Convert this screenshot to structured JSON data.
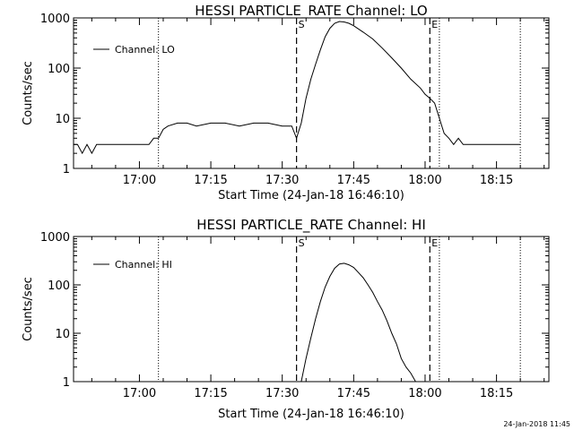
{
  "figure": {
    "timestamp": "24-Jan-2018 11:45"
  },
  "chart_data": [
    {
      "type": "line",
      "title": "HESSI PARTICLE_RATE Channel: LO",
      "xlabel": "Start Time (24-Jan-18 16:46:10)",
      "ylabel": "Counts/sec",
      "x_ticks": [
        "17:00",
        "17:15",
        "17:30",
        "17:45",
        "18:00",
        "18:15"
      ],
      "y_ticks": [
        "1",
        "10",
        "100",
        "1000"
      ],
      "ylim": [
        1,
        1000
      ],
      "y_scale": "log",
      "xlim": [
        "16:46:10",
        "18:26"
      ],
      "grid": false,
      "legend": {
        "position": "top-left",
        "entries": [
          "Channel: LO"
        ]
      },
      "markers": [
        {
          "label": "S",
          "time": "17:33",
          "style": "dashed"
        },
        {
          "label": "E",
          "time": "18:01",
          "style": "dashed"
        }
      ],
      "dotted_lines": [
        "17:04",
        "18:03",
        "18:20"
      ],
      "series": [
        {
          "name": "Channel: LO",
          "x": [
            "16:46:10",
            "16:47",
            "16:48",
            "16:49",
            "16:50",
            "16:51",
            "16:52",
            "16:53",
            "16:55",
            "16:56",
            "16:57",
            "16:58",
            "17:00",
            "17:02",
            "17:03",
            "17:04",
            "17:05",
            "17:06",
            "17:08",
            "17:10",
            "17:12",
            "17:15",
            "17:18",
            "17:21",
            "17:24",
            "17:27",
            "17:30",
            "17:32",
            "17:33",
            "17:34",
            "17:35",
            "17:36",
            "17:37",
            "17:38",
            "17:39",
            "17:40",
            "17:41",
            "17:42",
            "17:43",
            "17:44",
            "17:45",
            "17:47",
            "17:49",
            "17:51",
            "17:53",
            "17:55",
            "17:57",
            "17:59",
            "18:00",
            "18:01",
            "18:02",
            "18:03",
            "18:04",
            "18:05",
            "18:06",
            "18:07",
            "18:08",
            "18:10",
            "18:12",
            "18:14",
            "18:16",
            "18:18",
            "18:19",
            "18:20"
          ],
          "values": [
            3,
            3,
            2,
            3,
            2,
            3,
            3,
            3,
            3,
            3,
            3,
            3,
            3,
            3,
            4,
            4,
            6,
            7,
            8,
            8,
            7,
            8,
            8,
            7,
            8,
            8,
            7,
            7,
            4,
            8,
            25,
            60,
            120,
            230,
            420,
            620,
            780,
            850,
            830,
            780,
            700,
            520,
            380,
            250,
            160,
            100,
            60,
            40,
            30,
            25,
            20,
            10,
            5,
            4,
            3,
            4,
            3,
            3,
            3,
            3,
            3,
            3,
            3,
            3
          ]
        }
      ]
    },
    {
      "type": "line",
      "title": "HESSI PARTICLE_RATE Channel: HI",
      "xlabel": "Start Time (24-Jan-18 16:46:10)",
      "ylabel": "Counts/sec",
      "x_ticks": [
        "17:00",
        "17:15",
        "17:30",
        "17:45",
        "18:00",
        "18:15"
      ],
      "y_ticks": [
        "1",
        "10",
        "100",
        "1000"
      ],
      "ylim": [
        1,
        1000
      ],
      "y_scale": "log",
      "xlim": [
        "16:46:10",
        "18:26"
      ],
      "grid": false,
      "legend": {
        "position": "top-left",
        "entries": [
          "Channel: HI"
        ]
      },
      "markers": [
        {
          "label": "S",
          "time": "17:33",
          "style": "dashed"
        },
        {
          "label": "E",
          "time": "18:01",
          "style": "dashed"
        }
      ],
      "dotted_lines": [
        "17:04",
        "18:03",
        "18:20"
      ],
      "series": [
        {
          "name": "Channel: HI",
          "x": [
            "17:34",
            "17:35",
            "17:36",
            "17:37",
            "17:38",
            "17:39",
            "17:40",
            "17:41",
            "17:42",
            "17:43",
            "17:44",
            "17:45",
            "17:46",
            "17:47",
            "17:48",
            "17:49",
            "17:50",
            "17:51",
            "17:52",
            "17:53",
            "17:54",
            "17:55",
            "17:56",
            "17:57",
            "17:58"
          ],
          "values": [
            1,
            3,
            8,
            20,
            45,
            90,
            150,
            220,
            270,
            280,
            260,
            230,
            180,
            140,
            100,
            70,
            45,
            30,
            18,
            10,
            6,
            3,
            2,
            1.5,
            1
          ]
        }
      ]
    }
  ]
}
